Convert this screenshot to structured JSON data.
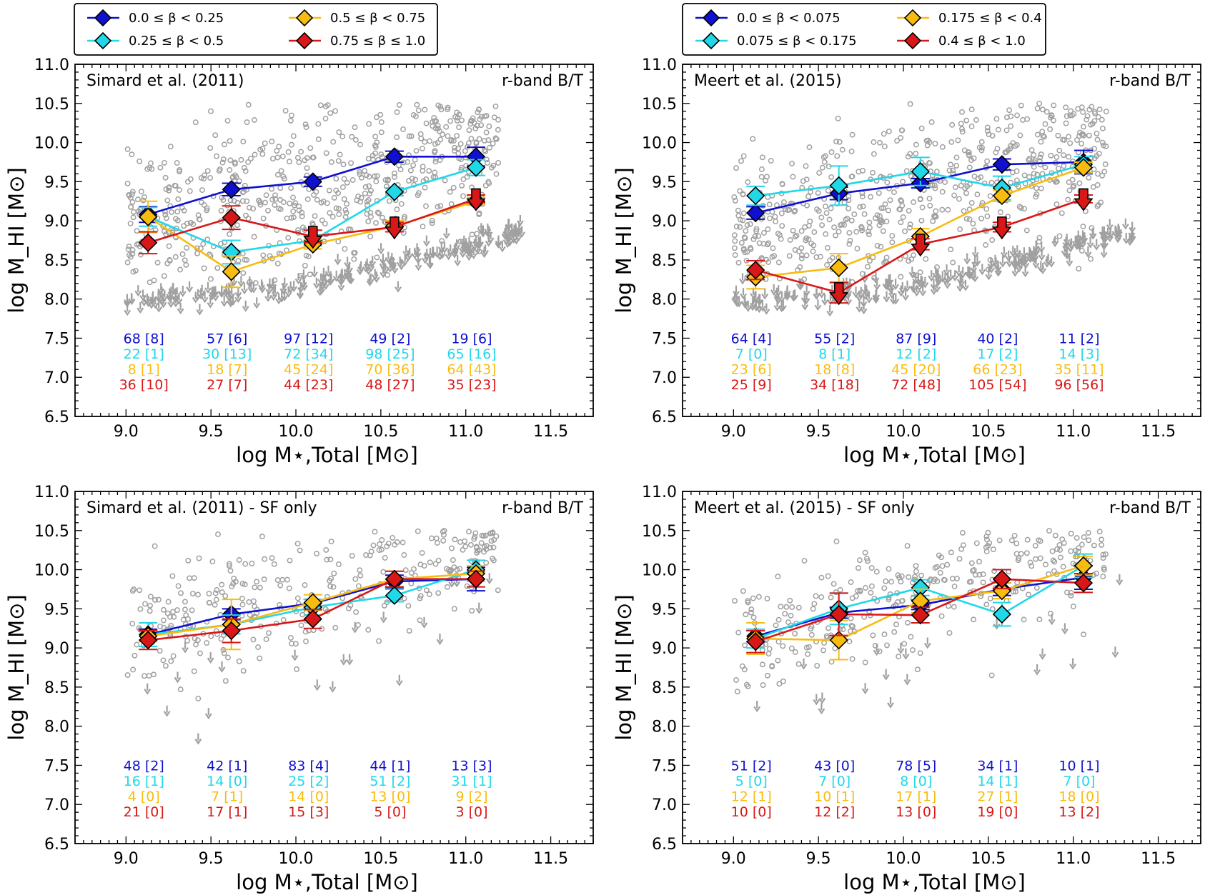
{
  "figure": {
    "colors": {
      "c0": "#1010d0",
      "c1": "#20d8e8",
      "c2": "#f8bc10",
      "c3": "#d81818",
      "scatter": "#a0a0a0"
    }
  },
  "chart_data": [
    {
      "type": "scatter",
      "title": "Simard et al. (2011)",
      "band_label": "r-band B/T",
      "xlabel": "log M⋆,Total [M⊙]",
      "ylabel": "log M_HI [M⊙]",
      "xlim": [
        8.7,
        11.75
      ],
      "ylim": [
        6.5,
        11.0
      ],
      "xticks": [
        "9.0",
        "9.5",
        "10.0",
        "10.5",
        "11.0",
        "11.5"
      ],
      "yticks": [
        "6.5",
        "7.0",
        "7.5",
        "8.0",
        "8.5",
        "9.0",
        "9.5",
        "10.0",
        "10.5",
        "11.0"
      ],
      "legend": [
        "0.0 ≤ β < 0.25",
        "0.25 ≤ β < 0.5",
        "0.5 ≤ β < 0.75",
        "0.75 ≤ β ≤ 1.0"
      ],
      "x": [
        9.13,
        9.62,
        10.1,
        10.58,
        11.06
      ],
      "series": [
        {
          "name": "0.0 ≤ β < 0.25",
          "color": "#1010d0",
          "values": [
            9.08,
            9.4,
            9.5,
            9.82,
            9.82
          ],
          "err": [
            0.1,
            0.08,
            0.06,
            0.07,
            0.12
          ],
          "upper_limit": [
            false,
            false,
            false,
            false,
            false
          ],
          "counts": [
            "68 [8]",
            "57 [6]",
            "97 [12]",
            "49 [2]",
            "19 [6]"
          ]
        },
        {
          "name": "0.25 ≤ β < 0.5",
          "color": "#20d8e8",
          "values": [
            9.05,
            8.6,
            8.75,
            9.37,
            9.68
          ],
          "err": [
            0.12,
            0.15,
            0.07,
            0.05,
            0.1
          ],
          "upper_limit": [
            false,
            false,
            false,
            false,
            false
          ],
          "counts": [
            "22 [1]",
            "30 [13]",
            "72 [34]",
            "98 [25]",
            "65 [16]"
          ]
        },
        {
          "name": "0.5 ≤ β < 0.75",
          "color": "#f8bc10",
          "values": [
            9.05,
            8.35,
            8.7,
            8.93,
            9.25
          ],
          "err": [
            0.2,
            0.2,
            0.06,
            0.07,
            0.05
          ],
          "upper_limit": [
            false,
            false,
            false,
            false,
            false
          ],
          "counts": [
            "8 [1]",
            "18 [7]",
            "45 [24]",
            "70 [36]",
            "64 [43]"
          ]
        },
        {
          "name": "0.75 ≤ β ≤ 1.0",
          "color": "#d81818",
          "values": [
            8.72,
            9.04,
            8.8,
            8.92,
            9.28
          ],
          "err": [
            0.14,
            0.15,
            0.08,
            0.06,
            0.05
          ],
          "upper_limit": [
            false,
            false,
            true,
            true,
            true
          ],
          "counts": [
            "36 [10]",
            "27 [7]",
            "44 [23]",
            "48 [27]",
            "35 [23]"
          ]
        }
      ]
    },
    {
      "type": "scatter",
      "title": "Meert et al. (2015)",
      "band_label": "r-band B/T",
      "xlabel": "log M⋆,Total [M⊙]",
      "ylabel": "log M_HI [M⊙]",
      "xlim": [
        8.7,
        11.75
      ],
      "ylim": [
        6.5,
        11.0
      ],
      "xticks": [
        "9.0",
        "9.5",
        "10.0",
        "10.5",
        "11.0",
        "11.5"
      ],
      "yticks": [
        "6.5",
        "7.0",
        "7.5",
        "8.0",
        "8.5",
        "9.0",
        "9.5",
        "10.0",
        "10.5",
        "11.0"
      ],
      "legend": [
        "0.0 ≤ β < 0.075",
        "0.075 ≤ β < 0.175",
        "0.175 ≤ β < 0.4",
        "0.4 ≤ β < 1.0"
      ],
      "x": [
        9.13,
        9.62,
        10.1,
        10.58,
        11.06
      ],
      "series": [
        {
          "name": "0.0 ≤ β < 0.075",
          "color": "#1010d0",
          "values": [
            9.1,
            9.35,
            9.48,
            9.72,
            9.75
          ],
          "err": [
            0.08,
            0.08,
            0.06,
            0.07,
            0.15
          ],
          "upper_limit": [
            false,
            false,
            false,
            false,
            false
          ],
          "counts": [
            "64 [4]",
            "55 [2]",
            "87 [9]",
            "40 [2]",
            "11 [2]"
          ]
        },
        {
          "name": "0.075 ≤ β < 0.175",
          "color": "#20d8e8",
          "values": [
            9.32,
            9.45,
            9.63,
            9.42,
            9.72
          ],
          "err": [
            0.12,
            0.25,
            0.18,
            0.15,
            0.1
          ],
          "upper_limit": [
            false,
            false,
            false,
            false,
            false
          ],
          "counts": [
            "7 [0]",
            "8 [1]",
            "12 [2]",
            "17 [2]",
            "14 [3]"
          ]
        },
        {
          "name": "0.175 ≤ β < 0.4",
          "color": "#f8bc10",
          "values": [
            8.28,
            8.4,
            8.8,
            9.32,
            9.68
          ],
          "err": [
            0.15,
            0.18,
            0.1,
            0.07,
            0.07
          ],
          "upper_limit": [
            false,
            false,
            false,
            false,
            false
          ],
          "counts": [
            "23 [6]",
            "18 [8]",
            "45 [20]",
            "66 [23]",
            "35 [11]"
          ]
        },
        {
          "name": "0.4 ≤ β < 1.0",
          "color": "#d81818",
          "values": [
            8.37,
            8.08,
            8.7,
            8.92,
            9.28
          ],
          "err": [
            0.12,
            0.13,
            0.07,
            0.06,
            0.05
          ],
          "upper_limit": [
            false,
            true,
            true,
            true,
            true
          ],
          "counts": [
            "25 [9]",
            "34 [18]",
            "72 [48]",
            "105 [54]",
            "96 [56]"
          ]
        }
      ]
    },
    {
      "type": "scatter",
      "title": "Simard et al. (2011) - SF only",
      "band_label": "r-band B/T",
      "xlabel": "log M⋆,Total [M⊙]",
      "ylabel": "log M_HI [M⊙]",
      "xlim": [
        8.7,
        11.75
      ],
      "ylim": [
        6.5,
        11.0
      ],
      "xticks": [
        "9.0",
        "9.5",
        "10.0",
        "10.5",
        "11.0",
        "11.5"
      ],
      "yticks": [
        "6.5",
        "7.0",
        "7.5",
        "8.0",
        "8.5",
        "9.0",
        "9.5",
        "10.0",
        "10.5",
        "11.0"
      ],
      "x": [
        9.13,
        9.62,
        10.1,
        10.58,
        11.06
      ],
      "series": [
        {
          "name": "0.0 ≤ β < 0.25",
          "color": "#1010d0",
          "values": [
            9.17,
            9.43,
            9.57,
            9.85,
            9.88
          ],
          "err": [
            0.07,
            0.07,
            0.05,
            0.08,
            0.15
          ],
          "upper_limit": [
            false,
            false,
            false,
            false,
            false
          ],
          "counts": [
            "48 [2]",
            "42 [1]",
            "83 [4]",
            "44 [1]",
            "13 [3]"
          ]
        },
        {
          "name": "0.25 ≤ β < 0.5",
          "color": "#20d8e8",
          "values": [
            9.17,
            9.3,
            9.52,
            9.67,
            10.0
          ],
          "err": [
            0.15,
            0.12,
            0.1,
            0.08,
            0.12
          ],
          "upper_limit": [
            false,
            false,
            false,
            false,
            false
          ],
          "counts": [
            "16 [1]",
            "14 [0]",
            "25 [2]",
            "51 [2]",
            "31 [1]"
          ]
        },
        {
          "name": "0.5 ≤ β < 0.75",
          "color": "#f8bc10",
          "values": [
            9.15,
            9.3,
            9.58,
            9.88,
            9.95
          ],
          "err": [
            0.07,
            0.32,
            0.1,
            0.1,
            0.1
          ],
          "upper_limit": [
            false,
            false,
            false,
            false,
            false
          ],
          "counts": [
            "4 [0]",
            "7 [1]",
            "14 [0]",
            "13 [0]",
            "9 [2]"
          ]
        },
        {
          "name": "0.75 ≤ β ≤ 1.0",
          "color": "#d81818",
          "values": [
            9.1,
            9.22,
            9.37,
            9.88,
            9.88
          ],
          "err": [
            0.12,
            0.15,
            0.12,
            0.1,
            0.1
          ],
          "upper_limit": [
            false,
            false,
            false,
            false,
            false
          ],
          "counts": [
            "21 [0]",
            "17 [1]",
            "15 [3]",
            "5 [0]",
            "3 [0]"
          ]
        }
      ]
    },
    {
      "type": "scatter",
      "title": "Meert et al. (2015) - SF only",
      "band_label": "r-band B/T",
      "xlabel": "log M⋆,Total [M⊙]",
      "ylabel": "log M_HI [M⊙]",
      "xlim": [
        8.7,
        11.75
      ],
      "ylim": [
        6.5,
        11.0
      ],
      "xticks": [
        "9.0",
        "9.5",
        "10.0",
        "10.5",
        "11.0",
        "11.5"
      ],
      "yticks": [
        "6.5",
        "7.0",
        "7.5",
        "8.0",
        "8.5",
        "9.0",
        "9.5",
        "10.0",
        "10.5",
        "11.0"
      ],
      "x": [
        9.13,
        9.62,
        10.1,
        10.58,
        11.06
      ],
      "series": [
        {
          "name": "0.0 ≤ β < 0.075",
          "color": "#1010d0",
          "values": [
            9.15,
            9.45,
            9.55,
            9.75,
            9.9
          ],
          "err": [
            0.07,
            0.07,
            0.06,
            0.08,
            0.15
          ],
          "upper_limit": [
            false,
            false,
            false,
            false,
            false
          ],
          "counts": [
            "51 [2]",
            "43 [0]",
            "78 [5]",
            "34 [1]",
            "10 [1]"
          ]
        },
        {
          "name": "0.075 ≤ β < 0.175",
          "color": "#20d8e8",
          "values": [
            9.12,
            9.5,
            9.77,
            9.43,
            10.05
          ],
          "err": [
            0.12,
            0.2,
            0.1,
            0.15,
            0.15
          ],
          "upper_limit": [
            false,
            false,
            false,
            false,
            false
          ],
          "counts": [
            "5 [0]",
            "7 [0]",
            "8 [0]",
            "14 [1]",
            "7 [0]"
          ]
        },
        {
          "name": "0.175 ≤ β < 0.4",
          "color": "#f8bc10",
          "values": [
            9.12,
            9.1,
            9.6,
            9.73,
            10.05
          ],
          "err": [
            0.2,
            0.25,
            0.15,
            0.1,
            0.12
          ],
          "upper_limit": [
            false,
            false,
            false,
            false,
            false
          ],
          "counts": [
            "12 [1]",
            "10 [1]",
            "17 [1]",
            "27 [1]",
            "18 [0]"
          ]
        },
        {
          "name": "0.4 ≤ β < 1.0",
          "color": "#d81818",
          "values": [
            9.08,
            9.43,
            9.42,
            9.88,
            9.83
          ],
          "err": [
            0.14,
            0.27,
            0.1,
            0.12,
            0.12
          ],
          "upper_limit": [
            false,
            false,
            false,
            false,
            false
          ],
          "counts": [
            "10 [0]",
            "12 [2]",
            "13 [0]",
            "19 [0]",
            "13 [2]"
          ]
        }
      ]
    }
  ]
}
